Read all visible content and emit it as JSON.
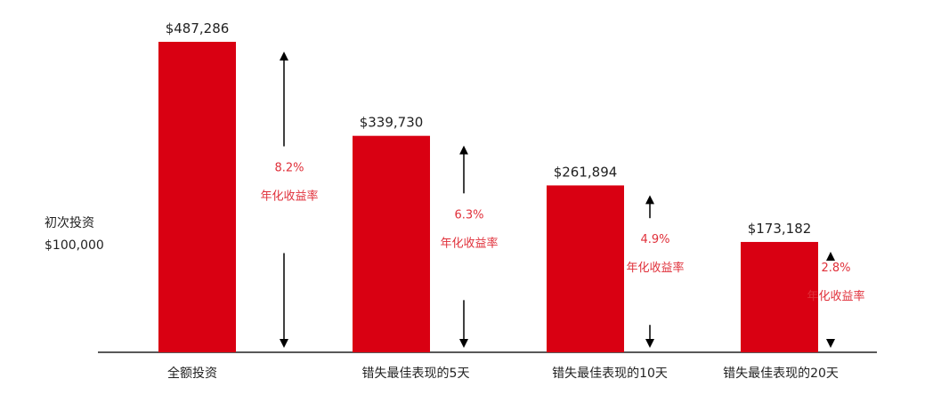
{
  "initial_investment": {
    "label": "初次投资",
    "value": "$100,000"
  },
  "colors": {
    "bar": "#d90012",
    "rate_text": "#e0303a",
    "axis": "#222222",
    "text": "#222222",
    "arrow": "#000000"
  },
  "chart_data": {
    "type": "bar",
    "title": "",
    "xlabel": "",
    "ylabel": "",
    "ylim": [
      0,
      487286
    ],
    "grid": false,
    "categories": [
      "全额投资",
      "错失最佳表现的5天",
      "错失最佳表现的10天",
      "错失最佳表现的20天"
    ],
    "values": [
      487286,
      339730,
      261894,
      173182
    ],
    "value_labels": [
      "$487,286",
      "$339,730",
      "$261,894",
      "$173,182"
    ],
    "annualized_returns": [
      "8.2%",
      "6.3%",
      "4.9%",
      "2.8%"
    ],
    "annualized_return_label": "年化收益率"
  }
}
